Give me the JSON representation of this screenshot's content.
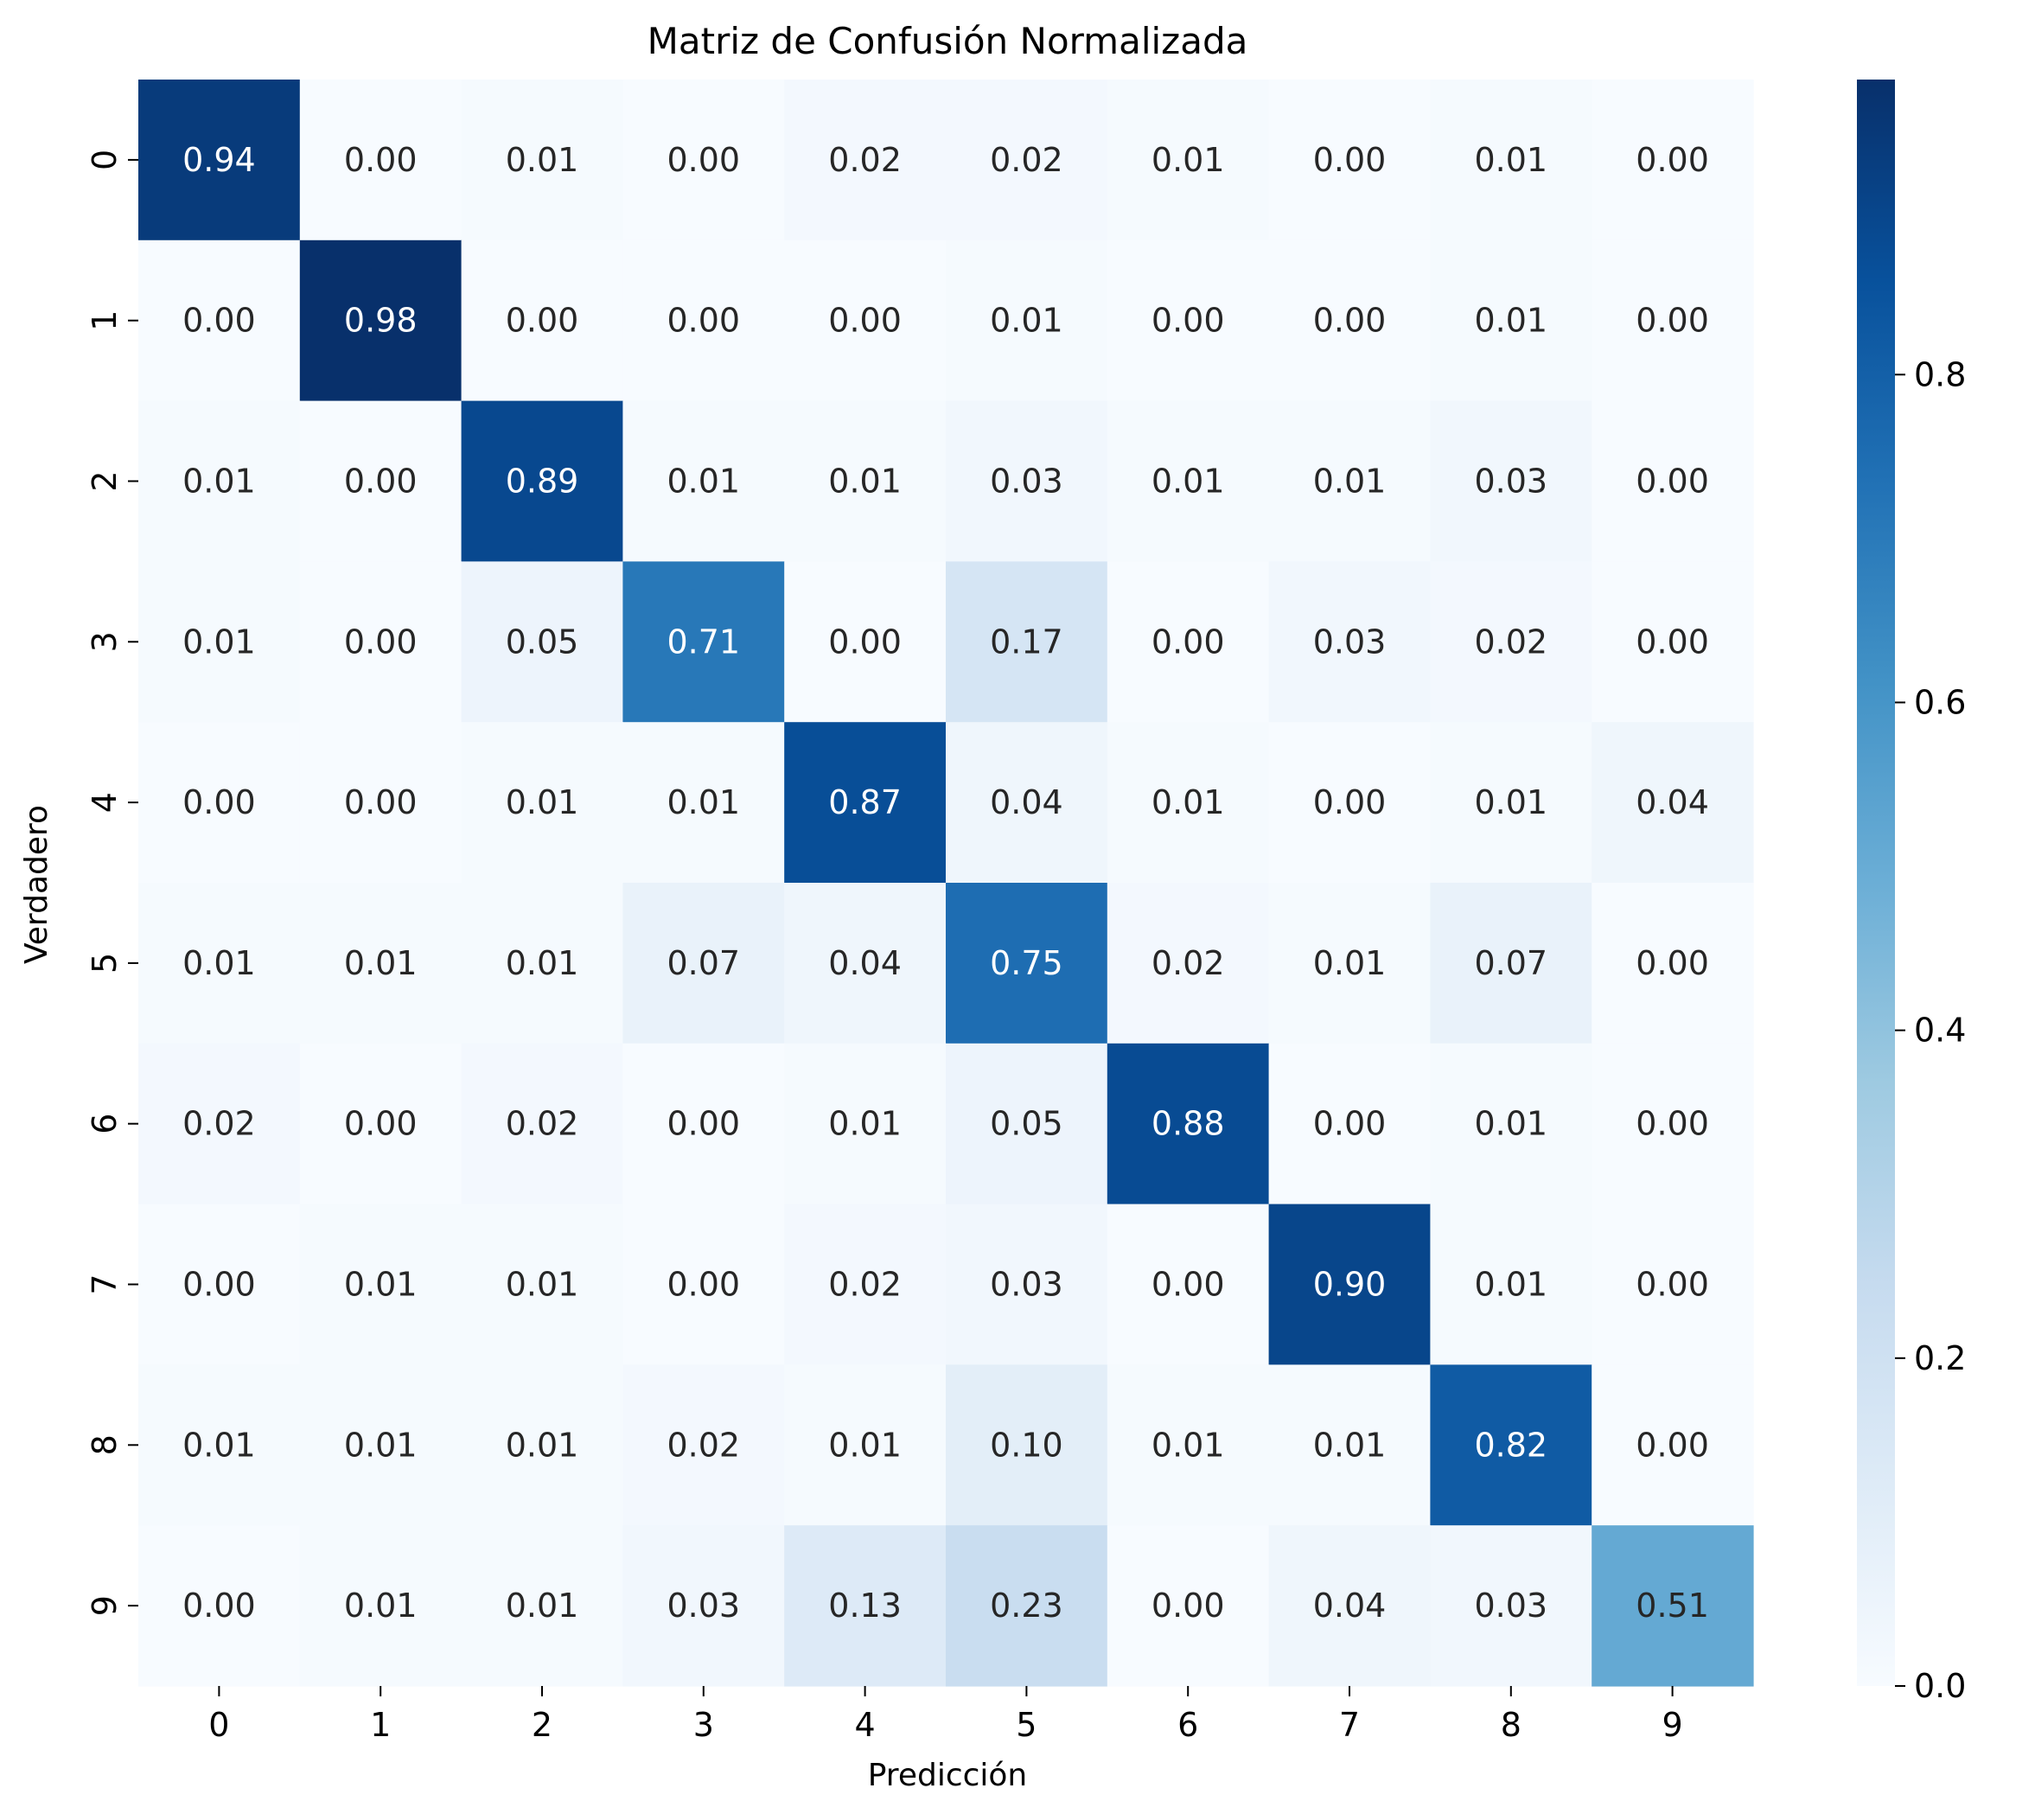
{
  "chart_data": {
    "type": "heatmap",
    "title": "Matriz de Confusión Normalizada",
    "xlabel": "Predicción",
    "ylabel": "Verdadero",
    "x_categories": [
      "0",
      "1",
      "2",
      "3",
      "4",
      "5",
      "6",
      "7",
      "8",
      "9"
    ],
    "y_categories": [
      "0",
      "1",
      "2",
      "3",
      "4",
      "5",
      "6",
      "7",
      "8",
      "9"
    ],
    "values": [
      [
        0.94,
        0.0,
        0.01,
        0.0,
        0.02,
        0.02,
        0.01,
        0.0,
        0.01,
        0.0
      ],
      [
        0.0,
        0.98,
        0.0,
        0.0,
        0.0,
        0.01,
        0.0,
        0.0,
        0.01,
        0.0
      ],
      [
        0.01,
        0.0,
        0.89,
        0.01,
        0.01,
        0.03,
        0.01,
        0.01,
        0.03,
        0.0
      ],
      [
        0.01,
        0.0,
        0.05,
        0.71,
        0.0,
        0.17,
        0.0,
        0.03,
        0.02,
        0.0
      ],
      [
        0.0,
        0.0,
        0.01,
        0.01,
        0.87,
        0.04,
        0.01,
        0.0,
        0.01,
        0.04
      ],
      [
        0.01,
        0.01,
        0.01,
        0.07,
        0.04,
        0.75,
        0.02,
        0.01,
        0.07,
        0.0
      ],
      [
        0.02,
        0.0,
        0.02,
        0.0,
        0.01,
        0.05,
        0.88,
        0.0,
        0.01,
        0.0
      ],
      [
        0.0,
        0.01,
        0.01,
        0.0,
        0.02,
        0.03,
        0.0,
        0.9,
        0.01,
        0.0
      ],
      [
        0.01,
        0.01,
        0.01,
        0.02,
        0.01,
        0.1,
        0.01,
        0.01,
        0.82,
        0.0
      ],
      [
        0.0,
        0.01,
        0.01,
        0.03,
        0.13,
        0.23,
        0.0,
        0.04,
        0.03,
        0.51
      ]
    ],
    "value_format": "0.00",
    "colormap": "Blues",
    "color_range": [
      0.0,
      0.98
    ],
    "colorbar_ticks": [
      "0.0",
      "0.2",
      "0.4",
      "0.6",
      "0.8"
    ],
    "colorbar_tick_values": [
      0.0,
      0.2,
      0.4,
      0.6,
      0.8
    ],
    "grid": false,
    "colorbar_placement": "right"
  }
}
